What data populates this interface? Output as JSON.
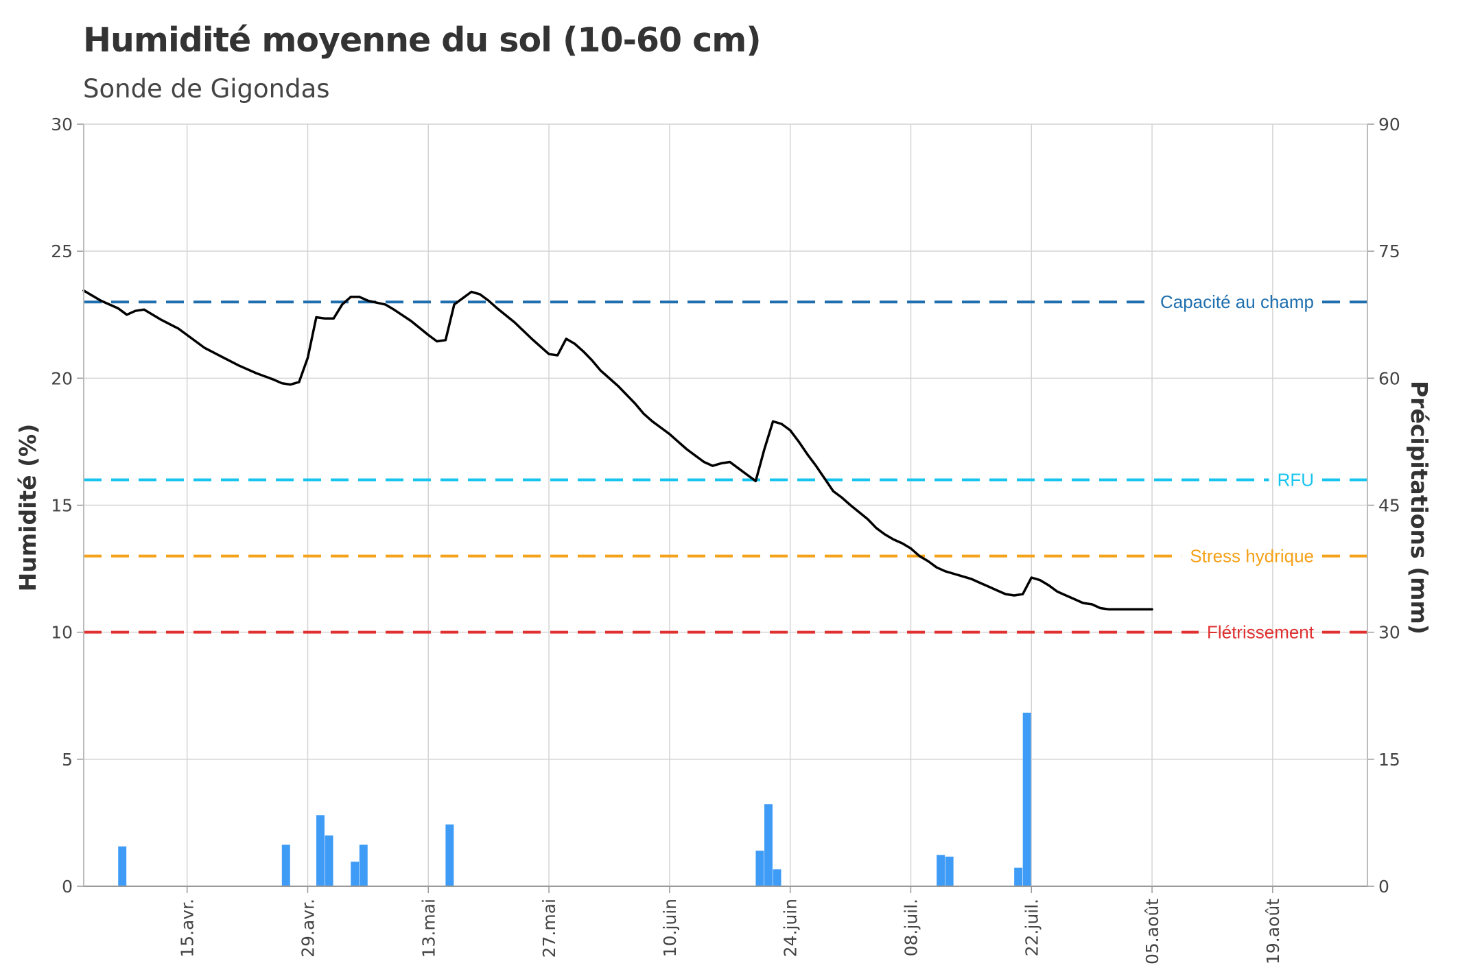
{
  "chart_data": {
    "type": "line",
    "title": "Humidité moyenne du sol (10-60 cm)",
    "subtitle": "Sonde de Gigondas",
    "ylabel": "Humidité (%)",
    "y2label": "Précipitations (mm)",
    "ylim": [
      0,
      30
    ],
    "y2lim": [
      0,
      90
    ],
    "yticks": [
      0,
      5,
      10,
      15,
      20,
      25,
      30
    ],
    "y2ticks": [
      0,
      15,
      30,
      45,
      60,
      75,
      90
    ],
    "xlim": [
      "2023-04-03",
      "2023-08-30"
    ],
    "grid": true,
    "xticks": [
      {
        "date": "2023-04-15",
        "label": "15.avr."
      },
      {
        "date": "2023-04-29",
        "label": "29.avr."
      },
      {
        "date": "2023-05-13",
        "label": "13.mai"
      },
      {
        "date": "2023-05-27",
        "label": "27.mai"
      },
      {
        "date": "2023-06-10",
        "label": "10.juin"
      },
      {
        "date": "2023-06-24",
        "label": "24.juin"
      },
      {
        "date": "2023-07-08",
        "label": "08.juil."
      },
      {
        "date": "2023-07-22",
        "label": "22.juil."
      },
      {
        "date": "2023-08-05",
        "label": "05.août"
      },
      {
        "date": "2023-08-19",
        "label": "19.août"
      }
    ],
    "reference_lines": [
      {
        "label": "Capacité au champ",
        "value": 23,
        "color": "#1f6fae"
      },
      {
        "label": "RFU",
        "value": 16,
        "color": "#17c4ee"
      },
      {
        "label": "Stress hydrique",
        "value": 13,
        "color": "#f5a21b"
      },
      {
        "label": "Flétrissement",
        "value": 10,
        "color": "#e03131"
      }
    ],
    "series": [
      {
        "name": "",
        "type": "line",
        "axis": "left",
        "color": "#000000",
        "points": [
          [
            "2023-04-03",
            23.45
          ],
          [
            "2023-04-05",
            23.05
          ],
          [
            "2023-04-07",
            22.75
          ],
          [
            "2023-04-08",
            22.5
          ],
          [
            "2023-04-09",
            22.65
          ],
          [
            "2023-04-10",
            22.7
          ],
          [
            "2023-04-12",
            22.3
          ],
          [
            "2023-04-14",
            21.95
          ],
          [
            "2023-04-15",
            21.7
          ],
          [
            "2023-04-17",
            21.2
          ],
          [
            "2023-04-19",
            20.85
          ],
          [
            "2023-04-21",
            20.5
          ],
          [
            "2023-04-23",
            20.2
          ],
          [
            "2023-04-25",
            19.95
          ],
          [
            "2023-04-26",
            19.8
          ],
          [
            "2023-04-27",
            19.75
          ],
          [
            "2023-04-28",
            19.85
          ],
          [
            "2023-04-29",
            20.8
          ],
          [
            "2023-04-30",
            22.4
          ],
          [
            "2023-05-01",
            22.35
          ],
          [
            "2023-05-02",
            22.35
          ],
          [
            "2023-05-03",
            22.9
          ],
          [
            "2023-05-04",
            23.2
          ],
          [
            "2023-05-05",
            23.2
          ],
          [
            "2023-05-06",
            23.05
          ],
          [
            "2023-05-08",
            22.9
          ],
          [
            "2023-05-09",
            22.7
          ],
          [
            "2023-05-11",
            22.25
          ],
          [
            "2023-05-13",
            21.7
          ],
          [
            "2023-05-14",
            21.45
          ],
          [
            "2023-05-15",
            21.5
          ],
          [
            "2023-05-16",
            22.9
          ],
          [
            "2023-05-17",
            23.15
          ],
          [
            "2023-05-18",
            23.4
          ],
          [
            "2023-05-19",
            23.3
          ],
          [
            "2023-05-20",
            23.05
          ],
          [
            "2023-05-21",
            22.75
          ],
          [
            "2023-05-23",
            22.2
          ],
          [
            "2023-05-25",
            21.55
          ],
          [
            "2023-05-27",
            20.95
          ],
          [
            "2023-05-28",
            20.9
          ],
          [
            "2023-05-29",
            21.55
          ],
          [
            "2023-05-30",
            21.35
          ],
          [
            "2023-05-31",
            21.05
          ],
          [
            "2023-06-01",
            20.7
          ],
          [
            "2023-06-02",
            20.3
          ],
          [
            "2023-06-04",
            19.7
          ],
          [
            "2023-06-06",
            19.0
          ],
          [
            "2023-06-07",
            18.6
          ],
          [
            "2023-06-08",
            18.3
          ],
          [
            "2023-06-09",
            18.05
          ],
          [
            "2023-06-10",
            17.8
          ],
          [
            "2023-06-11",
            17.5
          ],
          [
            "2023-06-12",
            17.2
          ],
          [
            "2023-06-13",
            16.95
          ],
          [
            "2023-06-14",
            16.7
          ],
          [
            "2023-06-15",
            16.55
          ],
          [
            "2023-06-16",
            16.65
          ],
          [
            "2023-06-17",
            16.7
          ],
          [
            "2023-06-18",
            16.45
          ],
          [
            "2023-06-19",
            16.2
          ],
          [
            "2023-06-20",
            15.95
          ],
          [
            "2023-06-21",
            17.2
          ],
          [
            "2023-06-22",
            18.3
          ],
          [
            "2023-06-23",
            18.2
          ],
          [
            "2023-06-24",
            17.95
          ],
          [
            "2023-06-25",
            17.5
          ],
          [
            "2023-06-26",
            17.0
          ],
          [
            "2023-06-27",
            16.55
          ],
          [
            "2023-06-28",
            16.05
          ],
          [
            "2023-06-29",
            15.55
          ],
          [
            "2023-06-30",
            15.3
          ],
          [
            "2023-07-01",
            15.0
          ],
          [
            "2023-07-03",
            14.45
          ],
          [
            "2023-07-04",
            14.1
          ],
          [
            "2023-07-05",
            13.85
          ],
          [
            "2023-07-06",
            13.65
          ],
          [
            "2023-07-07",
            13.5
          ],
          [
            "2023-07-08",
            13.3
          ],
          [
            "2023-07-09",
            13.0
          ],
          [
            "2023-07-10",
            12.8
          ],
          [
            "2023-07-11",
            12.55
          ],
          [
            "2023-07-12",
            12.4
          ],
          [
            "2023-07-13",
            12.3
          ],
          [
            "2023-07-14",
            12.2
          ],
          [
            "2023-07-15",
            12.1
          ],
          [
            "2023-07-16",
            11.95
          ],
          [
            "2023-07-17",
            11.8
          ],
          [
            "2023-07-18",
            11.65
          ],
          [
            "2023-07-19",
            11.5
          ],
          [
            "2023-07-20",
            11.45
          ],
          [
            "2023-07-21",
            11.5
          ],
          [
            "2023-07-22",
            12.15
          ],
          [
            "2023-07-23",
            12.05
          ],
          [
            "2023-07-24",
            11.85
          ],
          [
            "2023-07-25",
            11.6
          ],
          [
            "2023-07-26",
            11.45
          ],
          [
            "2023-07-27",
            11.3
          ],
          [
            "2023-07-28",
            11.15
          ],
          [
            "2023-07-29",
            11.1
          ],
          [
            "2023-07-30",
            10.95
          ],
          [
            "2023-07-31",
            10.9
          ],
          [
            "2023-08-05",
            10.9
          ]
        ]
      },
      {
        "name": "",
        "type": "bar",
        "axis": "right",
        "color": "#3e9bf6",
        "points": [
          [
            "2023-04-07",
            4.7
          ],
          [
            "2023-04-26",
            4.9
          ],
          [
            "2023-04-30",
            8.4
          ],
          [
            "2023-05-01",
            6.0
          ],
          [
            "2023-05-04",
            2.9
          ],
          [
            "2023-05-05",
            4.9
          ],
          [
            "2023-05-15",
            7.3
          ],
          [
            "2023-06-20",
            4.2
          ],
          [
            "2023-06-21",
            9.7
          ],
          [
            "2023-06-22",
            2.0
          ],
          [
            "2023-07-11",
            3.7
          ],
          [
            "2023-07-12",
            3.5
          ],
          [
            "2023-07-20",
            2.2
          ],
          [
            "2023-07-21",
            20.5
          ]
        ]
      }
    ]
  }
}
